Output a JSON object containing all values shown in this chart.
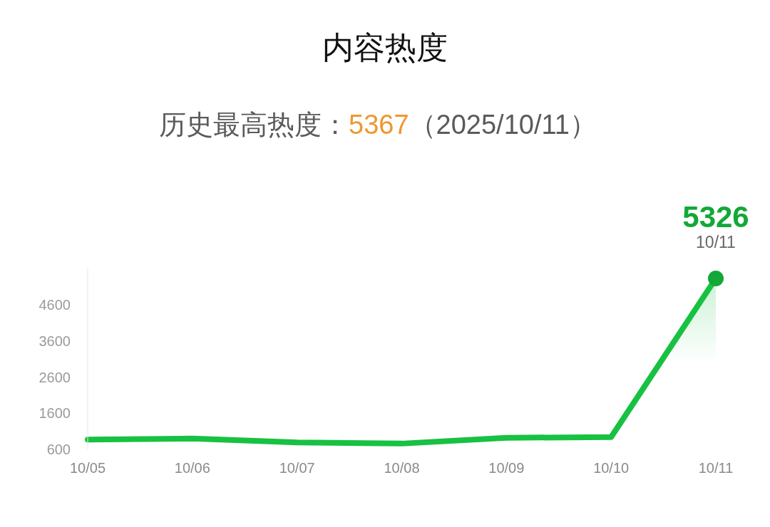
{
  "chart_data": {
    "type": "area",
    "title": "内容热度",
    "subtitle": "历史最高热度：5367（2025/10/11）",
    "categories": [
      "10/05",
      "10/06",
      "10/07",
      "10/08",
      "10/09",
      "10/10",
      "10/11"
    ],
    "series": [
      {
        "color": "#18c142",
        "values": [
          870,
          900,
          790,
          760,
          920,
          940,
          5326
        ]
      },
      {
        "type": "scatter",
        "color": "#12a838",
        "x": [
          "10/11"
        ],
        "values": [
          5326
        ],
        "value_labels": [
          "5326"
        ]
      }
    ],
    "ylim": [
      600,
      5600
    ],
    "yticks": [
      600,
      1600,
      2600,
      3600,
      4600
    ],
    "annotations": [
      {
        "text": "10/11",
        "x": "10/11",
        "y": 5326
      }
    ]
  }
}
